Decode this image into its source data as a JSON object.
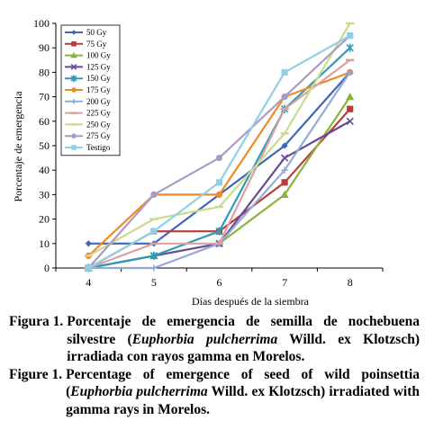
{
  "chart_data": {
    "type": "line",
    "x": [
      4,
      5,
      6,
      7,
      8
    ],
    "xlabel": "Días después de la siembra",
    "ylabel": "Porcentaje de emergencia",
    "ylim": [
      0,
      100
    ],
    "yticks": [
      0,
      10,
      20,
      30,
      40,
      50,
      60,
      70,
      80,
      90,
      100
    ],
    "grid": false,
    "legend_position": "top-left",
    "series": [
      {
        "name": "50 Gy",
        "color": "#3f66b8",
        "marker": "diamond",
        "values": [
          10,
          10,
          30,
          50,
          80
        ]
      },
      {
        "name": "75 Gy",
        "color": "#b83c3c",
        "marker": "square",
        "values": [
          0,
          15,
          15,
          35,
          65
        ]
      },
      {
        "name": "100 Gy",
        "color": "#8cb43c",
        "marker": "triangle",
        "values": [
          0,
          5,
          10,
          30,
          70
        ]
      },
      {
        "name": "125 Gy",
        "color": "#6a4c94",
        "marker": "x",
        "values": [
          0,
          5,
          10,
          45,
          60
        ]
      },
      {
        "name": "150 Gy",
        "color": "#2f9bb8",
        "marker": "star",
        "values": [
          0,
          5,
          15,
          65,
          90
        ]
      },
      {
        "name": "175 Gy",
        "color": "#ee8a2a",
        "marker": "circle",
        "values": [
          5,
          30,
          30,
          70,
          80
        ]
      },
      {
        "name": "200 Gy",
        "color": "#93a9d8",
        "marker": "plus",
        "values": [
          0,
          0,
          10,
          40,
          80
        ]
      },
      {
        "name": "225 Gy",
        "color": "#dba0a0",
        "marker": "dash",
        "values": [
          0,
          10,
          10,
          65,
          85
        ]
      },
      {
        "name": "250 Gy",
        "color": "#c8dc8c",
        "marker": "dash",
        "values": [
          5,
          20,
          25,
          55,
          100
        ]
      },
      {
        "name": "275 Gy",
        "color": "#a89cc4",
        "marker": "circle",
        "values": [
          0,
          30,
          45,
          70,
          95
        ]
      },
      {
        "name": "Testigo",
        "color": "#8fd0e6",
        "marker": "square",
        "values": [
          0,
          15,
          35,
          80,
          95
        ]
      }
    ]
  },
  "caption": {
    "es_label": "Figura 1.",
    "es_text_1": "Porcentaje de emergencia de semilla de nochebuena silvestre (",
    "es_species": "Euphorbia pulcherrima",
    "es_text_2": " Willd. ex Klotzsch) irradiada con rayos gamma en Morelos.",
    "en_label": "Figure 1.",
    "en_text_1": "Percentage of emergence of seed of wild poinsettia (",
    "en_species": "Euphorbia pulcherrima",
    "en_text_2": " Willd. ex Klotzsch) irradiated with gamma rays in Morelos."
  }
}
